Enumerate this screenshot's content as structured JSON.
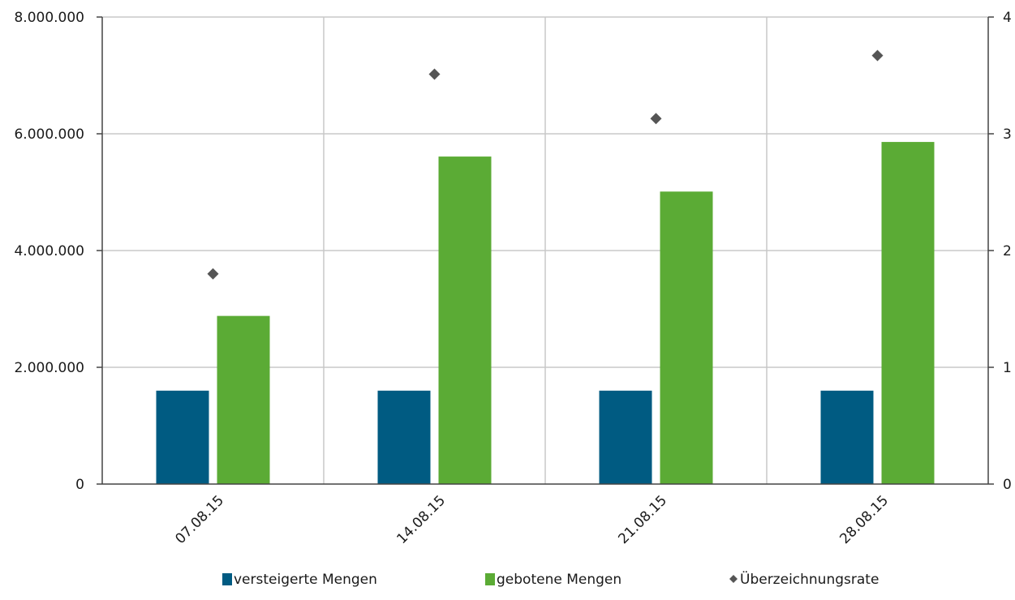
{
  "chart_data": {
    "type": "bar",
    "categories": [
      "07.08.15",
      "14.08.15",
      "21.08.15",
      "28.08.15"
    ],
    "series": [
      {
        "name": "versteigerte Mengen",
        "kind": "bar",
        "axis": "left",
        "color": "#005b82",
        "values": [
          1600000,
          1600000,
          1600000,
          1600000
        ]
      },
      {
        "name": "gebotene Mengen",
        "kind": "bar",
        "axis": "left",
        "color": "#5bab35",
        "values": [
          2880000,
          5610000,
          5010000,
          5860000
        ]
      },
      {
        "name": "Überzeichnungsrate",
        "kind": "scatter",
        "marker": "diamond",
        "axis": "right",
        "color": "#555555",
        "values": [
          1.8,
          3.51,
          3.13,
          3.67
        ]
      }
    ],
    "y_left": {
      "range": [
        0,
        8000000
      ],
      "ticks": [
        0,
        2000000,
        4000000,
        6000000,
        8000000
      ],
      "tick_labels": [
        "0",
        "2.000.000",
        "4.000.000",
        "6.000.000",
        "8.000.000"
      ]
    },
    "y_right": {
      "range": [
        0,
        4
      ],
      "ticks": [
        0,
        1,
        2,
        3,
        4
      ],
      "tick_labels": [
        "0",
        "1",
        "2",
        "3",
        "4"
      ]
    },
    "grid": true,
    "legend_position": "bottom",
    "x_tick_rotation": "-45deg"
  }
}
